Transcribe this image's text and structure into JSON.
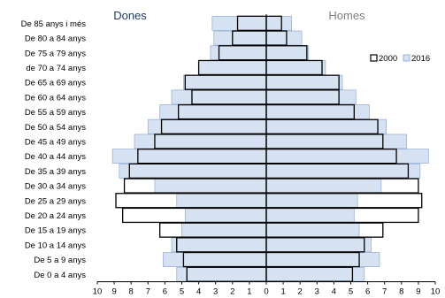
{
  "chart_data": {
    "type": "bar",
    "orientation": "horizontal",
    "diverging": true,
    "left_label": "Dones",
    "right_label": "Homes",
    "categories": [
      "De 85 anys i més",
      "De 80 a 84 anys",
      "De 75 a 79 anys",
      "de 70 a 74 anys",
      "De 65 a 69 anys",
      "De 60 a 64 anys",
      "De 55 a 59 anys",
      "De 50 a 54 anys",
      "De 45 a 49 anys",
      "De 40 a 44 anys",
      "De 35 a 39 anys",
      "De 30 a 34 anys",
      "De 25 a 29 anys",
      "De 20 a 24 anys",
      "De 15 a 19 anys",
      "De 10 a 14 anys",
      "De 5 a 9 anys",
      "De 0 a 4 anys"
    ],
    "series": [
      {
        "name": "2016",
        "style": "filled",
        "color": "#d6e2f1",
        "border_color": "#9ab3d5",
        "women": [
          3.2,
          3.1,
          3.3,
          4.0,
          4.9,
          5.6,
          6.3,
          7.0,
          7.8,
          9.1,
          8.7,
          6.6,
          5.3,
          4.8,
          5.0,
          5.6,
          6.1,
          5.3
        ],
        "men": [
          1.5,
          2.1,
          2.5,
          3.5,
          4.5,
          5.3,
          6.1,
          7.1,
          8.3,
          9.6,
          9.1,
          6.8,
          5.4,
          5.2,
          5.5,
          6.2,
          6.7,
          5.8
        ]
      },
      {
        "name": "2000",
        "style": "outline",
        "color": "#000000",
        "women": [
          1.7,
          2.0,
          2.8,
          4.0,
          4.8,
          4.4,
          5.2,
          6.2,
          6.6,
          7.6,
          8.1,
          8.4,
          8.9,
          8.5,
          6.3,
          5.3,
          4.9,
          4.7
        ],
        "men": [
          0.9,
          1.2,
          2.4,
          3.3,
          4.3,
          4.3,
          5.2,
          6.6,
          6.9,
          7.7,
          8.4,
          9.0,
          9.2,
          9.0,
          6.9,
          5.8,
          5.5,
          5.1
        ]
      }
    ],
    "x_ticks": [
      "10",
      "9",
      "8",
      "7",
      "6",
      "5",
      "4",
      "3",
      "2",
      "1",
      "0",
      "1",
      "2",
      "3",
      "4",
      "5",
      "6",
      "7",
      "8",
      "9",
      "10"
    ],
    "xlim": [
      -10,
      10
    ],
    "grid": false,
    "legend_position": "top-right"
  }
}
